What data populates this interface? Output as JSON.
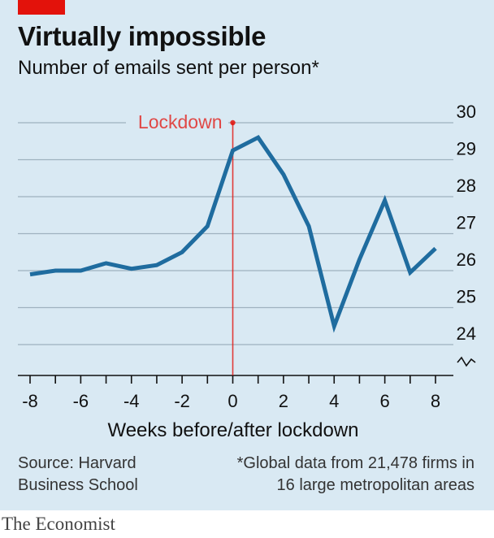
{
  "header": {
    "title": "Virtually impossible",
    "subtitle": "Number of emails sent per person*"
  },
  "footer": {
    "source_line1": "Source: Harvard",
    "source_line2": "Business School",
    "note_line1": "*Global data from 21,478 firms in",
    "note_line2": "16 large metropolitan areas",
    "brand": "The Economist"
  },
  "colors": {
    "panel": "#d9e9f3",
    "line": "#1f6c9f",
    "annotation": "#e3120b",
    "brand_tab": "#e3120b"
  },
  "chart_data": {
    "type": "line",
    "title": "Virtually impossible",
    "subtitle": "Number of emails sent per person*",
    "xlabel": "Weeks before/after lockdown",
    "ylabel": "",
    "xlim": [
      -8,
      8
    ],
    "ylim": [
      23.2,
      30
    ],
    "y_axis_break": true,
    "y_axis_side": "right",
    "grid": "horizontal",
    "x_ticks": [
      -8,
      -7,
      -6,
      -5,
      -4,
      -3,
      -2,
      -1,
      0,
      1,
      2,
      3,
      4,
      5,
      6,
      7,
      8
    ],
    "x_tick_labels": [
      "-8",
      "-6",
      "-4",
      "-2",
      "0",
      "2",
      "4",
      "6",
      "8"
    ],
    "x_tick_label_values": [
      -8,
      -6,
      -4,
      -2,
      0,
      2,
      4,
      6,
      8
    ],
    "y_ticks": [
      24,
      25,
      26,
      27,
      28,
      29,
      30
    ],
    "y_tick_labels": [
      "24",
      "25",
      "26",
      "27",
      "28",
      "29",
      "30"
    ],
    "series": [
      {
        "x": [
          -8,
          -7,
          -6,
          -5,
          -4,
          -3,
          -2,
          -1,
          0,
          1,
          2,
          3,
          4,
          5,
          6,
          7,
          8
        ],
        "values": [
          25.9,
          26.0,
          26.0,
          26.2,
          26.05,
          26.15,
          26.5,
          27.2,
          29.25,
          29.6,
          28.6,
          27.2,
          24.5,
          26.3,
          27.9,
          25.95,
          26.6
        ]
      }
    ],
    "annotations": [
      {
        "text": "Lockdown",
        "x": 0,
        "y": 30
      }
    ]
  }
}
